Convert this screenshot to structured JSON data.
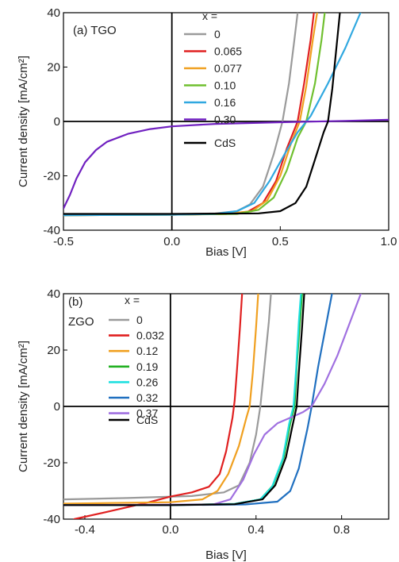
{
  "chart_data": [
    {
      "type": "line",
      "panel_label": "(a) TGO",
      "xlabel": "Bias [V]",
      "ylabel": "Current density [mA/cm²]",
      "xlim": [
        -0.5,
        1.0
      ],
      "ylim": [
        -40,
        40
      ],
      "xticks": [
        "-0.5",
        "0.0",
        "0.5",
        "1.0"
      ],
      "yticks": [
        "40",
        "20",
        "0",
        "-20",
        "-40"
      ],
      "legend_title": "x =",
      "series": [
        {
          "name": "0",
          "color": "#9a9a9a",
          "points": [
            [
              -0.5,
              -34.5
            ],
            [
              0.0,
              -34.2
            ],
            [
              0.2,
              -33.8
            ],
            [
              0.3,
              -33.0
            ],
            [
              0.36,
              -30.5
            ],
            [
              0.42,
              -24
            ],
            [
              0.47,
              -12
            ],
            [
              0.51,
              0
            ],
            [
              0.54,
              14
            ],
            [
              0.565,
              30
            ],
            [
              0.58,
              40
            ]
          ]
        },
        {
          "name": "0.065",
          "color": "#e02020",
          "points": [
            [
              -0.5,
              -34.5
            ],
            [
              0.0,
              -34.3
            ],
            [
              0.25,
              -34.0
            ],
            [
              0.35,
              -33.2
            ],
            [
              0.42,
              -30
            ],
            [
              0.48,
              -22
            ],
            [
              0.53,
              -10
            ],
            [
              0.58,
              0
            ],
            [
              0.61,
              14
            ],
            [
              0.64,
              30
            ],
            [
              0.655,
              40
            ]
          ]
        },
        {
          "name": "0.077",
          "color": "#f0a020",
          "points": [
            [
              -0.5,
              -34.5
            ],
            [
              0.0,
              -34.3
            ],
            [
              0.25,
              -34.0
            ],
            [
              0.37,
              -33.0
            ],
            [
              0.44,
              -29
            ],
            [
              0.5,
              -20
            ],
            [
              0.55,
              -8
            ],
            [
              0.59,
              0
            ],
            [
              0.62,
              13
            ],
            [
              0.65,
              30
            ],
            [
              0.67,
              40
            ]
          ]
        },
        {
          "name": "0.10",
          "color": "#70c030",
          "points": [
            [
              -0.5,
              -34.5
            ],
            [
              0.0,
              -34.3
            ],
            [
              0.3,
              -34.0
            ],
            [
              0.4,
              -32.5
            ],
            [
              0.47,
              -28
            ],
            [
              0.53,
              -18
            ],
            [
              0.58,
              -6
            ],
            [
              0.62,
              0
            ],
            [
              0.66,
              14
            ],
            [
              0.69,
              30
            ],
            [
              0.705,
              40
            ]
          ]
        },
        {
          "name": "0.16",
          "color": "#30a8e0",
          "points": [
            [
              -0.5,
              -34.5
            ],
            [
              0.0,
              -34.3
            ],
            [
              0.2,
              -34.0
            ],
            [
              0.3,
              -33.0
            ],
            [
              0.38,
              -30
            ],
            [
              0.45,
              -22
            ],
            [
              0.52,
              -12
            ],
            [
              0.58,
              -4
            ],
            [
              0.64,
              2
            ],
            [
              0.72,
              14
            ],
            [
              0.8,
              27
            ],
            [
              0.87,
              40
            ]
          ]
        },
        {
          "name": "0.30",
          "color": "#7020c0",
          "points": [
            [
              -0.5,
              -32
            ],
            [
              -0.47,
              -27
            ],
            [
              -0.44,
              -21
            ],
            [
              -0.4,
              -15
            ],
            [
              -0.35,
              -10.5
            ],
            [
              -0.3,
              -7.5
            ],
            [
              -0.2,
              -4.5
            ],
            [
              -0.1,
              -2.8
            ],
            [
              0.0,
              -1.8
            ],
            [
              0.2,
              -0.9
            ],
            [
              0.5,
              -0.3
            ],
            [
              0.8,
              0.2
            ],
            [
              1.0,
              0.6
            ]
          ]
        },
        {
          "name": "CdS",
          "color": "#000000",
          "points": [
            [
              -0.5,
              -34.0
            ],
            [
              0.0,
              -34.0
            ],
            [
              0.4,
              -33.8
            ],
            [
              0.5,
              -33.0
            ],
            [
              0.57,
              -30
            ],
            [
              0.62,
              -24
            ],
            [
              0.66,
              -14
            ],
            [
              0.7,
              -4
            ],
            [
              0.72,
              0
            ],
            [
              0.74,
              12
            ],
            [
              0.76,
              28
            ],
            [
              0.775,
              40
            ]
          ]
        }
      ]
    },
    {
      "type": "line",
      "panel_label": "(b)",
      "panel_sublabel": "ZGO",
      "xlabel": "Bias [V]",
      "ylabel": "Current density [mA/cm²]",
      "xlim": [
        -0.5,
        1.02
      ],
      "ylim": [
        -40,
        40
      ],
      "xticks": [
        "-0.4",
        "0.0",
        "0.4",
        "0.8"
      ],
      "yticks": [
        "40",
        "20",
        "0",
        "-20",
        "-40"
      ],
      "legend_title": "x =",
      "series": [
        {
          "name": "0",
          "color": "#9a9a9a",
          "points": [
            [
              -0.5,
              -33
            ],
            [
              -0.2,
              -32.5
            ],
            [
              0.1,
              -31.8
            ],
            [
              0.25,
              -30.5
            ],
            [
              0.32,
              -28
            ],
            [
              0.37,
              -20
            ],
            [
              0.4,
              -10
            ],
            [
              0.42,
              0
            ],
            [
              0.44,
              15
            ],
            [
              0.46,
              30
            ],
            [
              0.47,
              40
            ]
          ]
        },
        {
          "name": "0.032",
          "color": "#e02020",
          "points": [
            [
              -0.45,
              -40
            ],
            [
              -0.3,
              -37.5
            ],
            [
              -0.1,
              -34
            ],
            [
              0.0,
              -32
            ],
            [
              0.1,
              -30.5
            ],
            [
              0.18,
              -28.5
            ],
            [
              0.23,
              -24
            ],
            [
              0.26,
              -16
            ],
            [
              0.29,
              -4
            ],
            [
              0.3,
              2
            ],
            [
              0.31,
              12
            ],
            [
              0.325,
              28
            ],
            [
              0.335,
              40
            ]
          ]
        },
        {
          "name": "0.12",
          "color": "#f0a020",
          "points": [
            [
              -0.5,
              -34.5
            ],
            [
              0.0,
              -34
            ],
            [
              0.15,
              -33
            ],
            [
              0.22,
              -30
            ],
            [
              0.27,
              -24
            ],
            [
              0.32,
              -14
            ],
            [
              0.355,
              -4
            ],
            [
              0.37,
              0
            ],
            [
              0.385,
              12
            ],
            [
              0.4,
              28
            ],
            [
              0.41,
              40
            ]
          ]
        },
        {
          "name": "0.19",
          "color": "#20b020",
          "points": [
            [
              -0.5,
              -35
            ],
            [
              0.0,
              -35
            ],
            [
              0.3,
              -34.6
            ],
            [
              0.42,
              -33
            ],
            [
              0.48,
              -28
            ],
            [
              0.53,
              -18
            ],
            [
              0.56,
              -6
            ],
            [
              0.58,
              0
            ],
            [
              0.59,
              14
            ],
            [
              0.605,
              30
            ],
            [
              0.615,
              40
            ]
          ]
        },
        {
          "name": "0.26",
          "color": "#20e0e0",
          "points": [
            [
              -0.5,
              -35
            ],
            [
              0.0,
              -35
            ],
            [
              0.3,
              -34.6
            ],
            [
              0.42,
              -33
            ],
            [
              0.475,
              -28.5
            ],
            [
              0.525,
              -18.5
            ],
            [
              0.555,
              -6
            ],
            [
              0.575,
              0
            ],
            [
              0.588,
              14
            ],
            [
              0.6,
              30
            ],
            [
              0.61,
              40
            ]
          ]
        },
        {
          "name": "0.32",
          "color": "#2070c0",
          "points": [
            [
              -0.5,
              -35
            ],
            [
              0.0,
              -35
            ],
            [
              0.35,
              -34.8
            ],
            [
              0.5,
              -33.8
            ],
            [
              0.56,
              -30
            ],
            [
              0.6,
              -22
            ],
            [
              0.64,
              -8
            ],
            [
              0.66,
              0
            ],
            [
              0.69,
              14
            ],
            [
              0.73,
              30
            ],
            [
              0.755,
              40
            ]
          ]
        },
        {
          "name": "0.37",
          "color": "#a070e0",
          "points": [
            [
              -0.5,
              -35
            ],
            [
              0.2,
              -34.8
            ],
            [
              0.28,
              -33
            ],
            [
              0.34,
              -26
            ],
            [
              0.39,
              -17
            ],
            [
              0.44,
              -10
            ],
            [
              0.5,
              -6
            ],
            [
              0.56,
              -4
            ],
            [
              0.62,
              -2
            ],
            [
              0.66,
              0
            ],
            [
              0.72,
              8
            ],
            [
              0.78,
              18
            ],
            [
              0.84,
              30
            ],
            [
              0.89,
              40
            ]
          ]
        },
        {
          "name": "CdS",
          "color": "#000000",
          "points": [
            [
              -0.5,
              -35
            ],
            [
              0.0,
              -35
            ],
            [
              0.3,
              -34.7
            ],
            [
              0.43,
              -33
            ],
            [
              0.49,
              -28
            ],
            [
              0.54,
              -18
            ],
            [
              0.57,
              -7
            ],
            [
              0.59,
              0
            ],
            [
              0.6,
              12
            ],
            [
              0.615,
              28
            ],
            [
              0.625,
              40
            ]
          ]
        }
      ]
    }
  ]
}
